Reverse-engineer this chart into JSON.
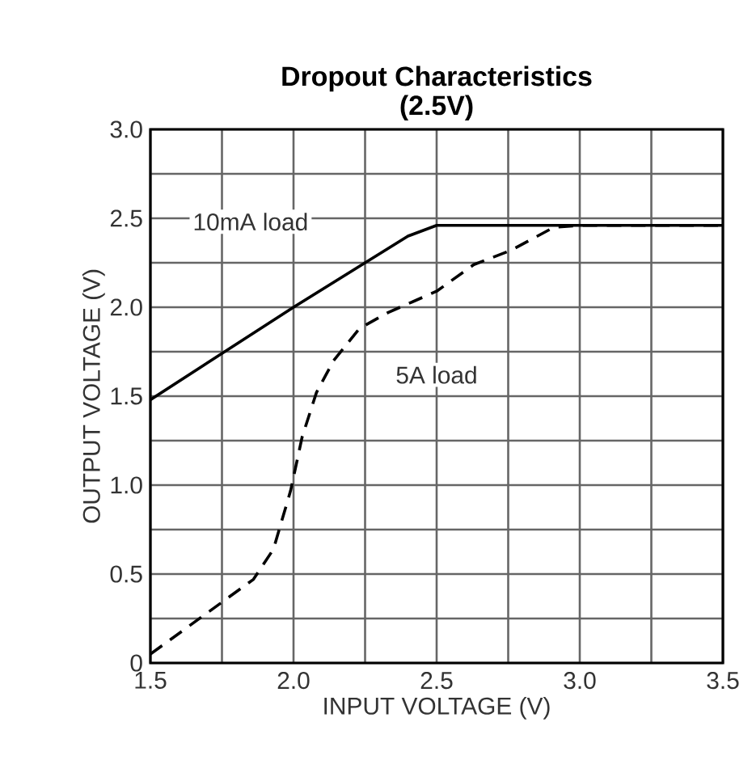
{
  "chart_data": {
    "type": "line",
    "title": "Dropout Characteristics",
    "subtitle": "(2.5V)",
    "xlabel": "INPUT VOLTAGE (V)",
    "ylabel": "OUTPUT VOLTAGE (V)",
    "x": [
      1.5,
      2.0,
      2.4,
      2.5,
      3.5
    ],
    "series": [
      {
        "color": "#000000",
        "line_style": "solid",
        "values": [
          1.48,
          2.0,
          2.4,
          2.46,
          2.46
        ]
      },
      {
        "color": "#000000",
        "line_style": "dashed",
        "x": [
          1.5,
          1.86,
          1.93,
          1.99,
          2.03,
          2.08,
          2.14,
          2.23,
          2.33,
          2.5,
          2.63,
          2.76,
          2.91,
          3.0,
          3.5
        ],
        "values": [
          0.05,
          0.47,
          0.64,
          0.97,
          1.27,
          1.52,
          1.7,
          1.88,
          1.97,
          2.09,
          2.24,
          2.32,
          2.45,
          2.46,
          2.46
        ]
      }
    ],
    "annotations": [
      "10mA load",
      "5A load"
    ],
    "xlim": [
      1.5,
      3.5
    ],
    "ylim": [
      0,
      3.0
    ],
    "xticks": [
      1.5,
      {
        "value": 1.75,
        "label": null
      },
      {
        "value": 2.0,
        "label": "2.0"
      },
      {
        "value": 2.25,
        "label": null
      },
      2.5,
      {
        "value": 2.75,
        "label": null
      },
      {
        "value": 3.0,
        "label": "3.0"
      },
      {
        "value": 3.25,
        "label": null
      },
      3.5
    ],
    "yticks": [
      0,
      {
        "value": 0.25,
        "label": null
      },
      0.5,
      {
        "value": 0.75,
        "label": null
      },
      {
        "value": 1.0,
        "label": "1.0"
      },
      {
        "value": 1.25,
        "label": null
      },
      1.5,
      {
        "value": 1.75,
        "label": null
      },
      {
        "value": 2.0,
        "label": "2.0"
      },
      {
        "value": 2.25,
        "label": null
      },
      2.5,
      {
        "value": 2.75,
        "label": null
      },
      {
        "value": 3.0,
        "label": "3.0"
      }
    ],
    "grid": true,
    "marker": "none"
  }
}
